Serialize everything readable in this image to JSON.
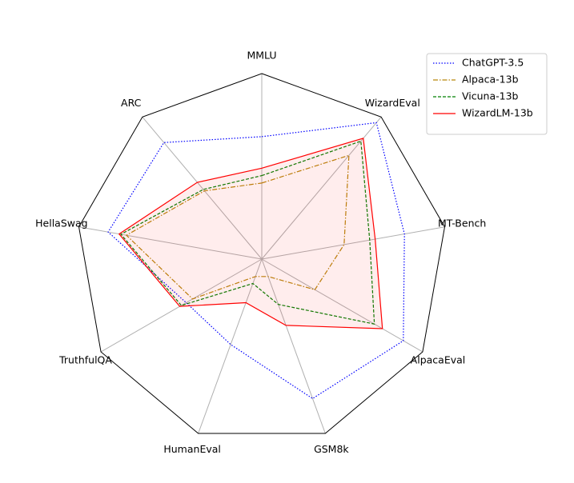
{
  "chart_data": {
    "type": "radar",
    "categories": [
      "MMLU",
      "WizardEval",
      "MT-Bench",
      "AlpacaEval",
      "GSM8k",
      "HumanEval",
      "TruthfulQA",
      "HellaSwag",
      "ARC"
    ],
    "ylim": [
      0,
      1
    ],
    "legend": "upper right",
    "series": [
      {
        "name": "ChatGPT-3.5",
        "color": "#0000ff",
        "dash": "dotted",
        "fill": false,
        "values": [
          0.66,
          0.96,
          0.78,
          0.88,
          0.8,
          0.49,
          0.47,
          0.84,
          0.82
        ]
      },
      {
        "name": "Alpaca-13b",
        "color": "#b8860b",
        "dash": "dashdot",
        "fill": false,
        "values": [
          0.41,
          0.73,
          0.45,
          0.33,
          0.1,
          0.1,
          0.43,
          0.74,
          0.48
        ]
      },
      {
        "name": "Vicuna-13b",
        "color": "#008000",
        "dash": "dashed",
        "fill": false,
        "values": [
          0.45,
          0.83,
          0.59,
          0.7,
          0.26,
          0.14,
          0.5,
          0.77,
          0.49
        ]
      },
      {
        "name": "WizardLM-13b",
        "color": "#ff0000",
        "dash": "solid",
        "fill": true,
        "values": [
          0.49,
          0.85,
          0.62,
          0.75,
          0.38,
          0.25,
          0.51,
          0.78,
          0.54
        ]
      }
    ]
  }
}
